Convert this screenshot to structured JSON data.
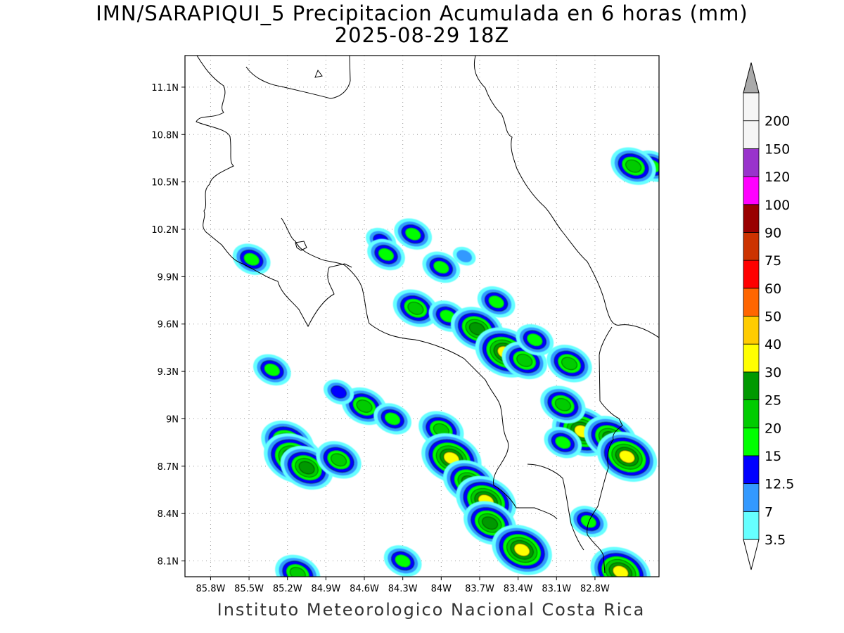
{
  "title": {
    "line1": "IMN/SARAPIQUI_5 Precipitacion Acumulada en 6 horas (mm)",
    "line2": "2025-08-29 18Z"
  },
  "footer": "Instituto Meteorologico Nacional Costa Rica",
  "map": {
    "lon_range": [
      -86.0,
      -82.3
    ],
    "lat_range": [
      8.0,
      11.3
    ],
    "lat_ticks": [
      {
        "value": 11.1,
        "label": "11.1N"
      },
      {
        "value": 10.8,
        "label": "10.8N"
      },
      {
        "value": 10.5,
        "label": "10.5N"
      },
      {
        "value": 10.2,
        "label": "10.2N"
      },
      {
        "value": 9.9,
        "label": "9.9N"
      },
      {
        "value": 9.6,
        "label": "9.6N"
      },
      {
        "value": 9.3,
        "label": "9.3N"
      },
      {
        "value": 9.0,
        "label": "9N"
      },
      {
        "value": 8.7,
        "label": "8.7N"
      },
      {
        "value": 8.4,
        "label": "8.4N"
      },
      {
        "value": 8.1,
        "label": "8.1N"
      }
    ],
    "lon_ticks": [
      {
        "value": -85.8,
        "label": "85.8W"
      },
      {
        "value": -85.5,
        "label": "85.5W"
      },
      {
        "value": -85.2,
        "label": "85.2W"
      },
      {
        "value": -84.9,
        "label": "84.9W"
      },
      {
        "value": -84.6,
        "label": "84.6W"
      },
      {
        "value": -84.3,
        "label": "84.3W"
      },
      {
        "value": -84.0,
        "label": "84W"
      },
      {
        "value": -83.7,
        "label": "83.7W"
      },
      {
        "value": -83.4,
        "label": "83.4W"
      },
      {
        "value": -83.1,
        "label": "83.1W"
      },
      {
        "value": -82.8,
        "label": "82.8W"
      }
    ],
    "grid": true
  },
  "colorbar": {
    "levels": [
      {
        "label": "3.5",
        "color": "#ffffff"
      },
      {
        "label": "7",
        "color": "#66ffff"
      },
      {
        "label": "12.5",
        "color": "#3399ff"
      },
      {
        "label": "15",
        "color": "#0000ff"
      },
      {
        "label": "20",
        "color": "#00ff00"
      },
      {
        "label": "25",
        "color": "#00cc00"
      },
      {
        "label": "30",
        "color": "#009900"
      },
      {
        "label": "40",
        "color": "#ffff00"
      },
      {
        "label": "50",
        "color": "#ffcc00"
      },
      {
        "label": "60",
        "color": "#ff6600"
      },
      {
        "label": "75",
        "color": "#ff0000"
      },
      {
        "label": "90",
        "color": "#cc3300"
      },
      {
        "label": "100",
        "color": "#990000"
      },
      {
        "label": "120",
        "color": "#ff00ff"
      },
      {
        "label": "150",
        "color": "#9933cc"
      },
      {
        "label": "200",
        "color": "#f5f5f5"
      }
    ],
    "top_triangle_color": "#aaaaaa",
    "bottom_triangle_color": "#ffffff"
  },
  "precip_cells": [
    {
      "lon": -85.48,
      "lat": 10.01,
      "level": 4
    },
    {
      "lon": -84.47,
      "lat": 10.13,
      "level": 3
    },
    {
      "lon": -84.22,
      "lat": 10.17,
      "level": 4
    },
    {
      "lon": -84.43,
      "lat": 10.04,
      "level": 4
    },
    {
      "lon": -84.0,
      "lat": 9.96,
      "level": 4
    },
    {
      "lon": -83.82,
      "lat": 10.03,
      "level": 2
    },
    {
      "lon": -84.2,
      "lat": 9.7,
      "level": 5
    },
    {
      "lon": -83.95,
      "lat": 9.65,
      "level": 4
    },
    {
      "lon": -83.72,
      "lat": 9.57,
      "level": 6
    },
    {
      "lon": -83.57,
      "lat": 9.74,
      "level": 4
    },
    {
      "lon": -83.5,
      "lat": 9.42,
      "level": 7
    },
    {
      "lon": -83.35,
      "lat": 9.37,
      "level": 5
    },
    {
      "lon": -83.27,
      "lat": 9.5,
      "level": 4
    },
    {
      "lon": -85.2,
      "lat": 8.85,
      "level": 6
    },
    {
      "lon": -85.15,
      "lat": 8.75,
      "level": 7
    },
    {
      "lon": -85.05,
      "lat": 8.69,
      "level": 6
    },
    {
      "lon": -84.8,
      "lat": 8.74,
      "level": 5
    },
    {
      "lon": -84.6,
      "lat": 9.08,
      "level": 5
    },
    {
      "lon": -84.38,
      "lat": 9.0,
      "level": 4
    },
    {
      "lon": -84.0,
      "lat": 8.93,
      "level": 5
    },
    {
      "lon": -83.92,
      "lat": 8.75,
      "level": 7
    },
    {
      "lon": -83.78,
      "lat": 8.6,
      "level": 6
    },
    {
      "lon": -83.65,
      "lat": 8.48,
      "level": 7
    },
    {
      "lon": -83.62,
      "lat": 8.34,
      "level": 6
    },
    {
      "lon": -83.37,
      "lat": 8.17,
      "level": 7
    },
    {
      "lon": -84.3,
      "lat": 8.1,
      "level": 4
    },
    {
      "lon": -85.12,
      "lat": 8.02,
      "level": 5
    },
    {
      "lon": -83.0,
      "lat": 9.35,
      "level": 5
    },
    {
      "lon": -82.9,
      "lat": 8.92,
      "level": 7
    },
    {
      "lon": -82.68,
      "lat": 8.88,
      "level": 6
    },
    {
      "lon": -82.55,
      "lat": 8.76,
      "level": 7
    },
    {
      "lon": -82.35,
      "lat": 10.6,
      "level": 4
    },
    {
      "lon": -82.5,
      "lat": 10.6,
      "level": 5
    },
    {
      "lon": -82.6,
      "lat": 8.03,
      "level": 7
    },
    {
      "lon": -84.8,
      "lat": 9.17,
      "level": 3
    },
    {
      "lon": -85.32,
      "lat": 9.31,
      "level": 4
    },
    {
      "lon": -83.05,
      "lat": 9.09,
      "level": 5
    },
    {
      "lon": -82.85,
      "lat": 8.35,
      "level": 4
    },
    {
      "lon": -83.05,
      "lat": 8.85,
      "level": 4
    }
  ]
}
